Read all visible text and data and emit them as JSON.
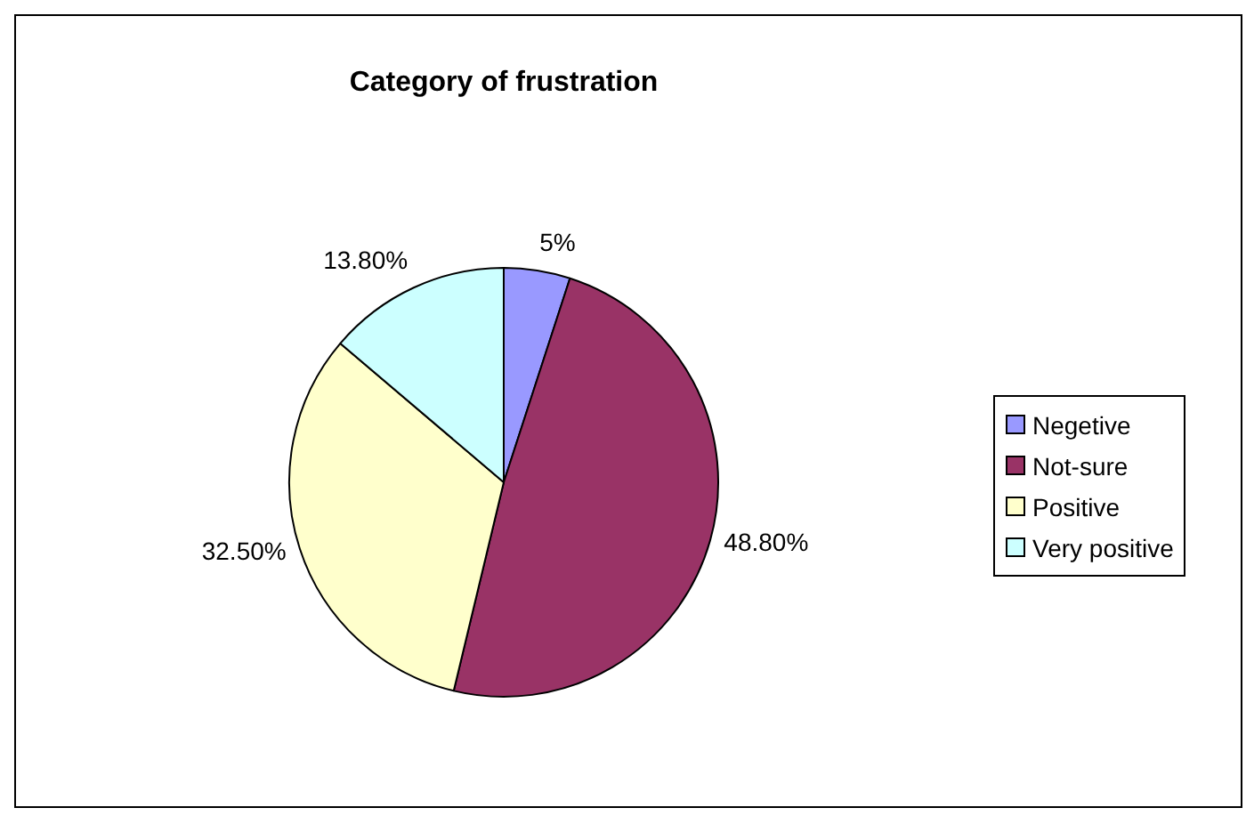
{
  "chart_data": {
    "type": "pie",
    "title": "Category of frustration",
    "categories": [
      "Negetive",
      "Not-sure",
      "Positive",
      "Very positive"
    ],
    "values": [
      5,
      48.8,
      32.5,
      13.8
    ],
    "value_labels": [
      "5%",
      "48.80%",
      "32.50%",
      "13.80%"
    ],
    "colors": [
      "#9999ff",
      "#993366",
      "#ffffcc",
      "#ccffff"
    ],
    "legend": "right"
  }
}
